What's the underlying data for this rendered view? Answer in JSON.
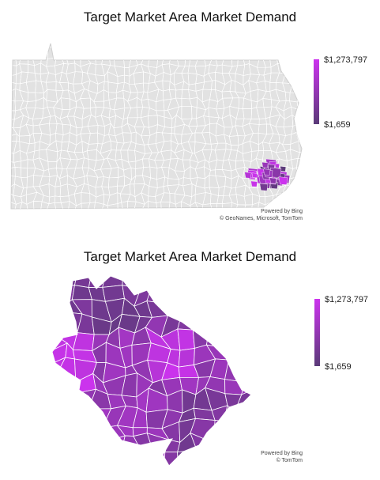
{
  "maps": [
    {
      "title": "Target Market Area Market Demand",
      "legend": {
        "max_label": "$1,273,797",
        "min_label": "$1,659"
      },
      "attribution": {
        "line1": "Powered by Bing",
        "line2": "© GeoNames, Microsoft, TomTom"
      },
      "view": "state-overview"
    },
    {
      "title": "Target Market Area Market Demand",
      "legend": {
        "max_label": "$1,273,797",
        "min_label": "$1,659"
      },
      "attribution": {
        "line1": "Powered by Bing",
        "line2": "© TomTom"
      },
      "view": "zoomed-target-area"
    }
  ],
  "colors": {
    "gradient_high": "#cc33ee",
    "gradient_low": "#5a3a78",
    "base_fill": "#e2e2e2",
    "boundary": "#ffffff"
  }
}
